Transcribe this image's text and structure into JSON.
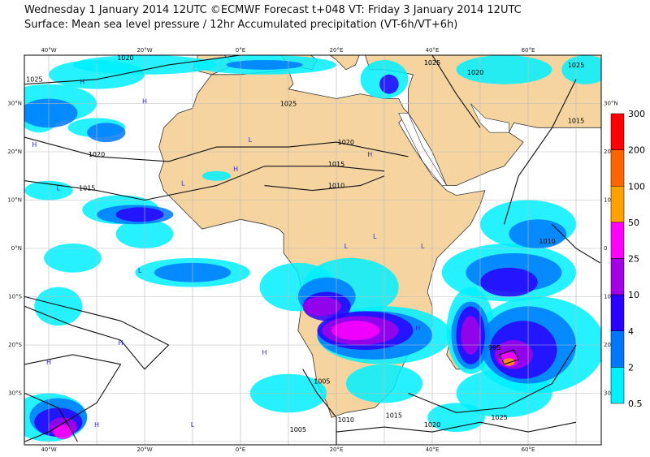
{
  "header": {
    "line1": "Wednesday 1 January 2014 12UTC ©ECMWF Forecast t+048 VT: Friday 3 January 2014 12UTC",
    "line2": "Surface: Mean sea level pressure / 12hr Accumulated precipitation (VT-6h/VT+6h)"
  },
  "map": {
    "lon_labels": [
      "40°W",
      "20°W",
      "0°E",
      "20°E",
      "40°E",
      "60°E"
    ],
    "lat_labels": [
      "30°N",
      "20°N",
      "10°N",
      "0°N",
      "10°S",
      "20°S",
      "30°S"
    ],
    "lat_labels_right": [
      "30°N",
      "20",
      "10",
      "0",
      "10",
      "20",
      "30"
    ],
    "isobar_labels": [
      "1020",
      "1025",
      "1025",
      "1020",
      "1015",
      "1010",
      "1015",
      "1020",
      "1010",
      "1015",
      "1025",
      "1020",
      "1025",
      "995",
      "1005",
      "1010",
      "1015",
      "1020",
      "1025",
      "1005"
    ],
    "pressure_centers": [
      "H",
      "H",
      "L",
      "L",
      "H",
      "L",
      "H",
      "L",
      "H",
      "L",
      "L",
      "H",
      "H",
      "L",
      "H",
      "H",
      "H",
      "L"
    ]
  },
  "colorbar": {
    "labels": [
      "300",
      "200",
      "100",
      "50",
      "25",
      "10",
      "4",
      "2",
      "0.5"
    ],
    "colors": [
      "#ff0000",
      "#ff6600",
      "#ffa200",
      "#ff00ff",
      "#a400e8",
      "#2a00ff",
      "#0078ff",
      "#00f0ff"
    ]
  }
}
